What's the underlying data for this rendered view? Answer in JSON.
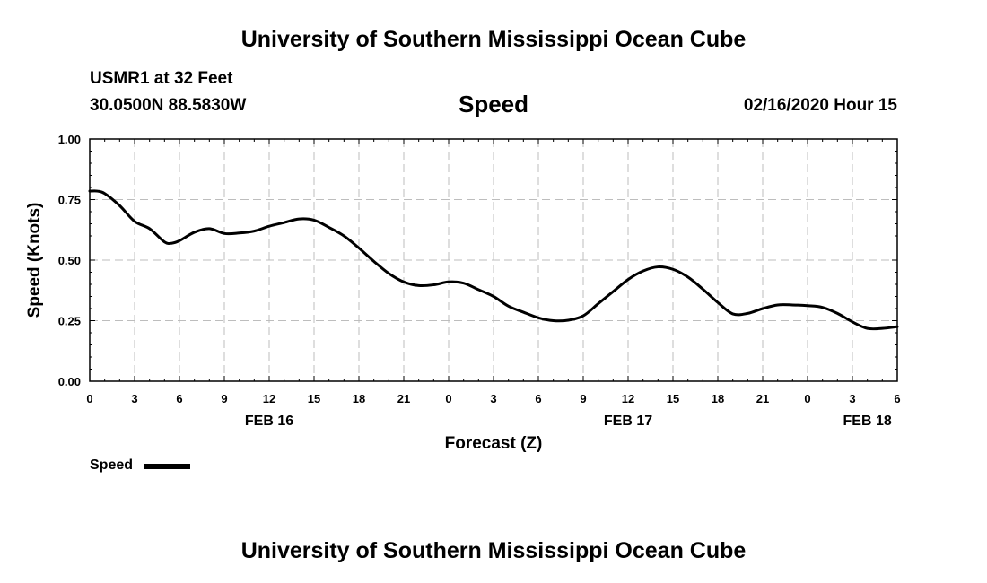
{
  "header": {
    "title": "University of Southern Mississippi Ocean Cube",
    "station": "USMR1 at 32 Feet",
    "location": "30.0500N 88.5830W",
    "parameter": "Speed",
    "timestamp": "02/16/2020 Hour 15"
  },
  "footer": {
    "title": "University of Southern Mississippi Ocean Cube"
  },
  "chart_data": {
    "type": "line",
    "title": "Speed",
    "xlabel": "Forecast (Z)",
    "ylabel": "Speed (Knots)",
    "ylim": [
      0,
      1
    ],
    "yticks": [
      "0.00",
      "0.25",
      "0.50",
      "0.75",
      "1.00"
    ],
    "xlim_hours": [
      0,
      54
    ],
    "xticks": [
      "0",
      "3",
      "6",
      "9",
      "12",
      "15",
      "18",
      "21",
      "0",
      "3",
      "6",
      "9",
      "12",
      "15",
      "18",
      "21",
      "0",
      "3",
      "6"
    ],
    "date_labels": [
      {
        "label": "FEB 16",
        "hour": 12
      },
      {
        "label": "FEB 17",
        "hour": 36
      },
      {
        "label": "FEB 18",
        "hour": 52
      }
    ],
    "grid": true,
    "legend": {
      "placement": "bottom-left",
      "label": "Speed"
    },
    "series": [
      {
        "name": "Speed",
        "color": "#000000",
        "x": [
          0,
          0.5,
          1,
          2,
          3,
          4,
          5,
          5.5,
          6,
          7,
          8,
          9,
          10,
          11,
          12,
          13,
          14,
          15,
          16,
          17,
          18,
          19,
          20,
          21,
          22,
          23,
          24,
          25,
          26,
          27,
          28,
          29,
          30,
          31,
          32,
          33,
          34,
          35,
          36,
          37,
          38,
          39,
          40,
          41,
          42,
          43,
          44,
          45,
          46,
          47,
          48,
          49,
          50,
          51,
          52,
          53,
          54
        ],
        "y": [
          0.785,
          0.785,
          0.775,
          0.725,
          0.66,
          0.63,
          0.575,
          0.57,
          0.58,
          0.615,
          0.63,
          0.61,
          0.612,
          0.62,
          0.64,
          0.655,
          0.67,
          0.665,
          0.635,
          0.6,
          0.55,
          0.495,
          0.445,
          0.41,
          0.395,
          0.398,
          0.41,
          0.405,
          0.378,
          0.35,
          0.31,
          0.285,
          0.262,
          0.25,
          0.252,
          0.27,
          0.32,
          0.37,
          0.42,
          0.455,
          0.472,
          0.462,
          0.43,
          0.38,
          0.325,
          0.278,
          0.28,
          0.3,
          0.315,
          0.315,
          0.312,
          0.305,
          0.28,
          0.245,
          0.218,
          0.218,
          0.225
        ]
      }
    ]
  }
}
